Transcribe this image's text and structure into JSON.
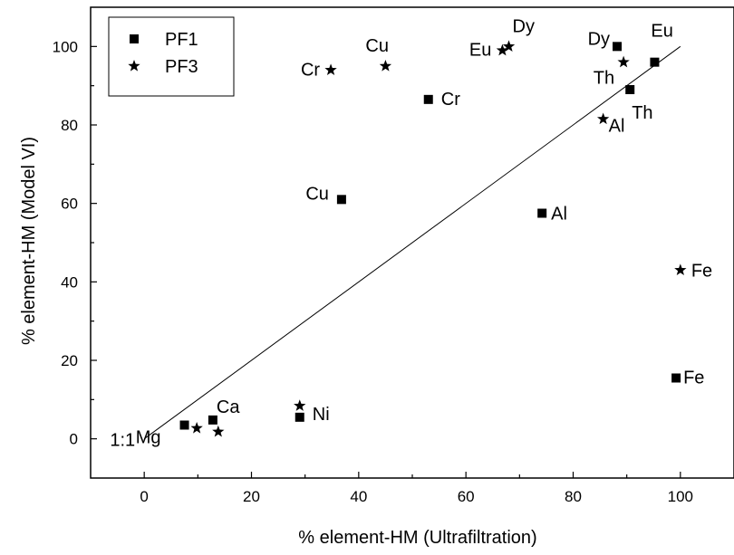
{
  "chart_data": {
    "type": "scatter",
    "xlabel": "% element-HM (Ultrafiltration)",
    "ylabel": "% element-HM (Model VI)",
    "xlim": [
      -10,
      110
    ],
    "ylim": [
      -10,
      110
    ],
    "x_ticks": [
      0,
      20,
      40,
      60,
      80,
      100
    ],
    "y_ticks": [
      0,
      20,
      40,
      60,
      80,
      100
    ],
    "legend_position": "top-left",
    "reference_line": {
      "label": "1:1",
      "from": [
        0,
        0
      ],
      "to": [
        100,
        100
      ]
    },
    "series": [
      {
        "name": "PF1",
        "marker": "square",
        "points": [
          {
            "label": "Mg",
            "x": 7.5,
            "y": 3.5
          },
          {
            "label": "Ca",
            "x": 12.8,
            "y": 4.8
          },
          {
            "label": "Ni",
            "x": 29,
            "y": 5.5
          },
          {
            "label": "Cu",
            "x": 36.8,
            "y": 61
          },
          {
            "label": "Cr",
            "x": 53,
            "y": 86.5
          },
          {
            "label": "Al",
            "x": 74.2,
            "y": 57.5
          },
          {
            "label": "Dy",
            "x": 88.2,
            "y": 100
          },
          {
            "label": "Th",
            "x": 90.6,
            "y": 89
          },
          {
            "label": "Eu",
            "x": 95.2,
            "y": 96
          },
          {
            "label": "Fe",
            "x": 99.2,
            "y": 15.5
          }
        ]
      },
      {
        "name": "PF3",
        "marker": "star",
        "points": [
          {
            "label": "",
            "x": 9.8,
            "y": 2.7
          },
          {
            "label": "",
            "x": 13.8,
            "y": 1.8
          },
          {
            "label": "",
            "x": 29,
            "y": 8.4
          },
          {
            "label": "Cr",
            "x": 34.8,
            "y": 94
          },
          {
            "label": "Cu",
            "x": 45,
            "y": 95
          },
          {
            "label": "Eu",
            "x": 66.8,
            "y": 99
          },
          {
            "label": "Dy",
            "x": 68,
            "y": 100
          },
          {
            "label": "Al",
            "x": 85.6,
            "y": 81.5
          },
          {
            "label": "Th",
            "x": 89.4,
            "y": 96
          },
          {
            "label": "Fe",
            "x": 100,
            "y": 43
          }
        ]
      }
    ]
  }
}
